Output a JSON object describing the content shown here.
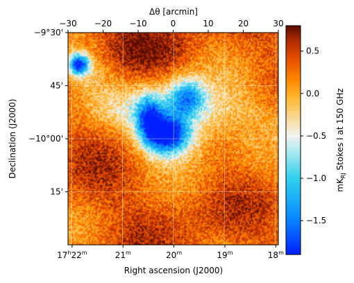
{
  "chart_data": {
    "type": "heatmap",
    "title": "",
    "top_axis": {
      "label": "Δθ [arcmin]",
      "range": [
        -30,
        30
      ],
      "ticks": [
        -30,
        -20,
        -10,
        0,
        10,
        20,
        30
      ],
      "tick_labels": [
        "−30",
        "−20",
        "−10",
        "0",
        "10",
        "20",
        "30"
      ]
    },
    "bottom_axis": {
      "label": "Right ascension (J2000)",
      "tick_labels": [
        "17h22m",
        "21m",
        "20m",
        "19m",
        "18m"
      ],
      "tick_values_min": [
        22,
        21,
        20,
        19,
        18
      ]
    },
    "left_axis": {
      "label": "Declination (J2000)",
      "tick_labels": [
        "−9°30'",
        "45'",
        "−10°00'",
        "15'"
      ],
      "tick_values_arcmin_offset": [
        30,
        15,
        0,
        -15
      ]
    },
    "colorbar": {
      "label": "mK_RJ Stokes I at 150 GHz",
      "range": [
        -1.9,
        0.8
      ],
      "ticks": [
        0.5,
        0.0,
        -0.5,
        -1.0,
        -1.5
      ],
      "tick_labels": [
        "0.5",
        "0.0",
        "−0.5",
        "−1.0",
        "−1.5"
      ],
      "colormap": [
        "#0020ff",
        "#0a8cff",
        "#2fd2ee",
        "#f4f4f0",
        "#ffb830",
        "#ff8a00",
        "#e85000",
        "#b02a00",
        "#5a0d00"
      ]
    },
    "grid": true,
    "features": [
      {
        "name": "cold-spot-upper-left",
        "dx_arcmin": -27,
        "dy_arcmin": 21,
        "value": -1.7
      },
      {
        "name": "central-cold-clump",
        "dx_arcmin": -2,
        "dy_arcmin": 1,
        "value": -1.8
      },
      {
        "name": "cold-filament-upper",
        "dx_arcmin": 4,
        "dy_arcmin": 12,
        "value": -0.9
      },
      {
        "name": "cold-filament-left",
        "dx_arcmin": -8,
        "dy_arcmin": 6,
        "value": -0.9
      },
      {
        "name": "hot-region-top",
        "dx_arcmin": -14,
        "dy_arcmin": 26,
        "value": 0.65
      }
    ]
  }
}
